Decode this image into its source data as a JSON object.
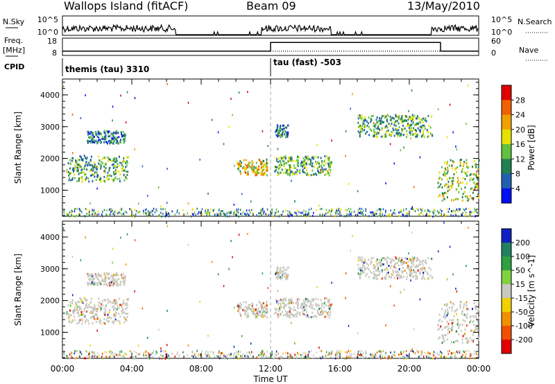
{
  "header": {
    "station": "Wallops Island (fitACF)",
    "beam": "Beam 09",
    "date": "13/May/2010"
  },
  "sky_panel": {
    "left_label": "N.Sky",
    "right_label": "N.Search",
    "left_ticks": [
      "10^5",
      "10^0"
    ],
    "right_ticks": [
      "10^5",
      "10^0"
    ]
  },
  "freq_panel": {
    "left_label_1": "Freq.",
    "left_label_2": "[MHz]",
    "right_label": "Nave",
    "left_ticks": [
      "18",
      "8"
    ],
    "right_ticks": [
      "60",
      "0"
    ]
  },
  "cpid_panel": {
    "label": "CPID",
    "modes": [
      {
        "name": "themis (tau) 3310",
        "start_hour": 0
      },
      {
        "name": "tau (fast) -503",
        "start_hour": 12
      }
    ]
  },
  "x_axis": {
    "label": "Time UT",
    "ticks": [
      "00:00",
      "04:00",
      "08:00",
      "12:00",
      "16:00",
      "20:00",
      "00:00"
    ]
  },
  "power_panel": {
    "ylabel": "Slant Range [km]",
    "yticks": [
      "1000",
      "2000",
      "3000",
      "4000"
    ],
    "colorbar_label": "Power [dB]",
    "colorbar_ticks": [
      "28",
      "24",
      "20",
      "16",
      "12",
      "8",
      "4"
    ],
    "colorbar_colors": [
      "#e00000",
      "#f06000",
      "#f0a000",
      "#e8e000",
      "#60c040",
      "#208050",
      "#2060b0",
      "#0010f0"
    ]
  },
  "velocity_panel": {
    "ylabel": "Slant Range [km]",
    "yticks": [
      "1000",
      "2000",
      "3000",
      "4000"
    ],
    "colorbar_label": "Velocity [m s^-1]",
    "colorbar_ticks": [
      "200",
      "100",
      "50",
      "15",
      "-15",
      "-50",
      "-100",
      "-200"
    ],
    "colorbar_colors": [
      "#1020c0",
      "#208060",
      "#30a040",
      "#80d040",
      "#c8c8c0",
      "#f0d000",
      "#f09000",
      "#f05000",
      "#e00000"
    ]
  },
  "chart_data": {
    "type": "heatmap",
    "title": "Wallops Island (fitACF) Beam 09 13/May/2010",
    "xlabel": "Time UT",
    "ylabel": "Slant Range [km]",
    "xlim_hours": [
      0,
      24
    ],
    "ylim_km": [
      180,
      4500
    ],
    "power_echo_regions": [
      {
        "t_start": 0.3,
        "t_end": 3.8,
        "r_start": 1300,
        "r_end": 2100,
        "power_db": 14
      },
      {
        "t_start": 1.4,
        "t_end": 3.6,
        "r_start": 2500,
        "r_end": 2900,
        "power_db": 10
      },
      {
        "t_start": 10.0,
        "t_end": 11.8,
        "r_start": 1500,
        "r_end": 2000,
        "power_db": 20
      },
      {
        "t_start": 12.2,
        "t_end": 15.5,
        "r_start": 1500,
        "r_end": 2100,
        "power_db": 14
      },
      {
        "t_start": 12.2,
        "t_end": 13.0,
        "r_start": 2700,
        "r_end": 3100,
        "power_db": 10
      },
      {
        "t_start": 17.0,
        "t_end": 21.3,
        "r_start": 2700,
        "r_end": 3400,
        "power_db": 14
      },
      {
        "t_start": 21.6,
        "t_end": 24.0,
        "r_start": 700,
        "r_end": 2000,
        "power_db": 18
      }
    ],
    "sky_noise_active": [
      [
        0,
        6.5
      ],
      [
        11.5,
        15.5
      ],
      [
        21.3,
        24.0
      ]
    ],
    "frequency_mhz": [
      {
        "t_start": 0,
        "t_end": 12,
        "freq": 10.5
      },
      {
        "t_start": 12,
        "t_end": 21.8,
        "freq": 15.5
      },
      {
        "t_start": 21.8,
        "t_end": 24,
        "freq": 10.5
      }
    ],
    "nave": 15
  }
}
